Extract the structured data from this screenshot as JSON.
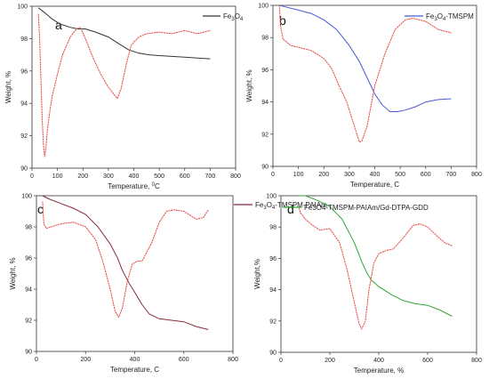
{
  "chart_data": [
    {
      "type": "line",
      "panel_label": "a",
      "xlabel": "Temperature, ",
      "xlabel_unit": "C",
      "xlabel_sup": "0",
      "ylabel": "Weight, %",
      "xlim": [
        0,
        800
      ],
      "ylim": [
        90,
        100
      ],
      "xticks": [
        0,
        100,
        200,
        300,
        400,
        500,
        600,
        700,
        800
      ],
      "yticks": [
        90,
        92,
        94,
        96,
        98,
        100
      ],
      "grid": false,
      "legend_position": "top-right",
      "series": [
        {
          "name": "Fe3O4",
          "name_base": "Fe",
          "name_sub1": "3",
          "name_mid": "O",
          "name_sub2": "4",
          "name_rest": "",
          "color": "#333333",
          "style": "solid",
          "x": [
            25,
            50,
            80,
            110,
            150,
            180,
            210,
            250,
            300,
            340,
            380,
            420,
            460,
            500,
            550,
            600,
            650,
            700
          ],
          "y": [
            99.9,
            99.6,
            99.2,
            98.9,
            98.7,
            98.6,
            98.6,
            98.4,
            98.1,
            97.7,
            97.3,
            97.1,
            97.0,
            96.95,
            96.9,
            96.85,
            96.8,
            96.75
          ]
        },
        {
          "name": "",
          "color": "#e8514a",
          "style": "dotted",
          "x": [
            25,
            30,
            35,
            40,
            45,
            50,
            55,
            60,
            70,
            80,
            100,
            120,
            150,
            175,
            190,
            210,
            240,
            270,
            300,
            320,
            335,
            350,
            370,
            390,
            420,
            450,
            500,
            550,
            600,
            650,
            700
          ],
          "y": [
            99.5,
            98.0,
            95.5,
            93.0,
            91.4,
            90.7,
            91.3,
            92.3,
            93.5,
            94.5,
            95.8,
            97.0,
            98.1,
            98.6,
            98.7,
            98.0,
            96.8,
            95.8,
            95.0,
            94.6,
            94.3,
            94.9,
            96.4,
            97.6,
            98.1,
            98.3,
            98.4,
            98.3,
            98.5,
            98.3,
            98.5
          ]
        }
      ]
    },
    {
      "type": "line",
      "panel_label": "b",
      "xlabel": "Temperature, C",
      "ylabel": "Weight, %",
      "xlim": [
        0,
        800
      ],
      "ylim": [
        90,
        100
      ],
      "xticks": [
        0,
        100,
        200,
        300,
        400,
        500,
        600,
        700,
        800
      ],
      "yticks": [
        90,
        92,
        94,
        96,
        98,
        100
      ],
      "grid": false,
      "legend_position": "top-right",
      "series": [
        {
          "name": "Fe3O4-TMSPM",
          "name_base": "Fe",
          "name_sub1": "3",
          "name_mid": "O",
          "name_sub2": "4",
          "name_rest": "-TMSPM",
          "color": "#4a57d6",
          "style": "solid",
          "x": [
            25,
            50,
            100,
            150,
            200,
            250,
            300,
            340,
            370,
            400,
            430,
            460,
            490,
            520,
            560,
            600,
            650,
            700
          ],
          "y": [
            100.0,
            99.9,
            99.7,
            99.5,
            99.1,
            98.5,
            97.5,
            96.5,
            95.5,
            94.5,
            93.8,
            93.4,
            93.4,
            93.5,
            93.7,
            94.0,
            94.15,
            94.2
          ]
        },
        {
          "name": "",
          "color": "#e8514a",
          "style": "dotted",
          "x": [
            25,
            30,
            40,
            55,
            70,
            100,
            150,
            200,
            230,
            260,
            290,
            320,
            340,
            350,
            370,
            400,
            440,
            480,
            520,
            550,
            600,
            650,
            700
          ],
          "y": [
            100.0,
            98.7,
            97.9,
            97.7,
            97.5,
            97.4,
            97.2,
            96.7,
            96.1,
            95.0,
            94.0,
            92.5,
            91.5,
            91.6,
            92.5,
            95.0,
            97.0,
            98.5,
            99.1,
            99.2,
            99.0,
            98.5,
            98.3
          ]
        }
      ]
    },
    {
      "type": "line",
      "panel_label": "c",
      "xlabel": "Temperature, C",
      "ylabel": "Weight, %",
      "xlim": [
        0,
        800
      ],
      "ylim": [
        90,
        100
      ],
      "xticks": [
        0,
        200,
        400,
        600,
        800
      ],
      "yticks": [
        90,
        92,
        94,
        96,
        98,
        100
      ],
      "grid": false,
      "legend_position": "top-right",
      "series": [
        {
          "name": "Fe3O4-TMSPM-PAIAm",
          "name_base": "Fe",
          "name_sub1": "3",
          "name_mid": "O",
          "name_sub2": "4",
          "name_rest": "-TMSPM-PAIAm",
          "color": "#8c2a3b",
          "style": "solid",
          "x": [
            25,
            50,
            100,
            150,
            200,
            250,
            300,
            330,
            350,
            380,
            400,
            430,
            460,
            500,
            550,
            600,
            650,
            700
          ],
          "y": [
            100.0,
            99.8,
            99.5,
            99.2,
            98.8,
            98.0,
            96.9,
            96.0,
            95.2,
            94.3,
            93.8,
            93.0,
            92.4,
            92.1,
            92.0,
            91.9,
            91.6,
            91.4
          ]
        },
        {
          "name": "",
          "color": "#e8514a",
          "style": "dotted",
          "x": [
            25,
            30,
            40,
            60,
            100,
            150,
            200,
            240,
            270,
            300,
            320,
            335,
            350,
            370,
            390,
            410,
            430,
            470,
            500,
            530,
            560,
            600,
            650,
            680,
            700
          ],
          "y": [
            99.6,
            98.2,
            97.9,
            98.0,
            98.2,
            98.3,
            98.0,
            97.2,
            95.8,
            94.0,
            92.6,
            92.2,
            92.8,
            94.5,
            95.6,
            95.8,
            95.8,
            97.0,
            98.3,
            99.0,
            99.1,
            99.0,
            98.5,
            98.6,
            99.1
          ]
        }
      ]
    },
    {
      "type": "line",
      "panel_label": "d",
      "xlabel": "Temperature, %",
      "ylabel": "Weight,%",
      "xlim": [
        0,
        800
      ],
      "ylim": [
        90,
        100
      ],
      "xticks": [
        0,
        200,
        400,
        600,
        800
      ],
      "yticks": [
        90,
        92,
        94,
        96,
        98,
        100
      ],
      "grid": false,
      "legend_position": "top-right",
      "series": [
        {
          "name": "Fe3O4-TMSPM-PAIAm/Gd-DTPA-GDD",
          "color": "#33a532",
          "style": "solid",
          "x": [
            75,
            100,
            150,
            200,
            250,
            300,
            330,
            350,
            370,
            400,
            450,
            500,
            550,
            600,
            650,
            700
          ],
          "y": [
            100.0,
            100.0,
            99.7,
            99.3,
            98.5,
            97.0,
            95.8,
            95.1,
            94.6,
            94.2,
            93.7,
            93.3,
            93.1,
            93.0,
            92.7,
            92.3
          ]
        },
        {
          "name": "",
          "color": "#e8514a",
          "style": "dotted",
          "x": [
            75,
            80,
            100,
            130,
            160,
            200,
            240,
            270,
            300,
            320,
            330,
            345,
            360,
            380,
            400,
            430,
            460,
            500,
            540,
            570,
            600,
            640,
            670,
            700
          ],
          "y": [
            99.2,
            98.9,
            98.5,
            98.1,
            97.8,
            97.9,
            97.0,
            95.3,
            93.2,
            91.8,
            91.5,
            92.0,
            94.0,
            95.7,
            96.3,
            96.5,
            96.6,
            97.3,
            98.1,
            98.2,
            98.0,
            97.4,
            97.0,
            96.8
          ]
        }
      ]
    }
  ]
}
